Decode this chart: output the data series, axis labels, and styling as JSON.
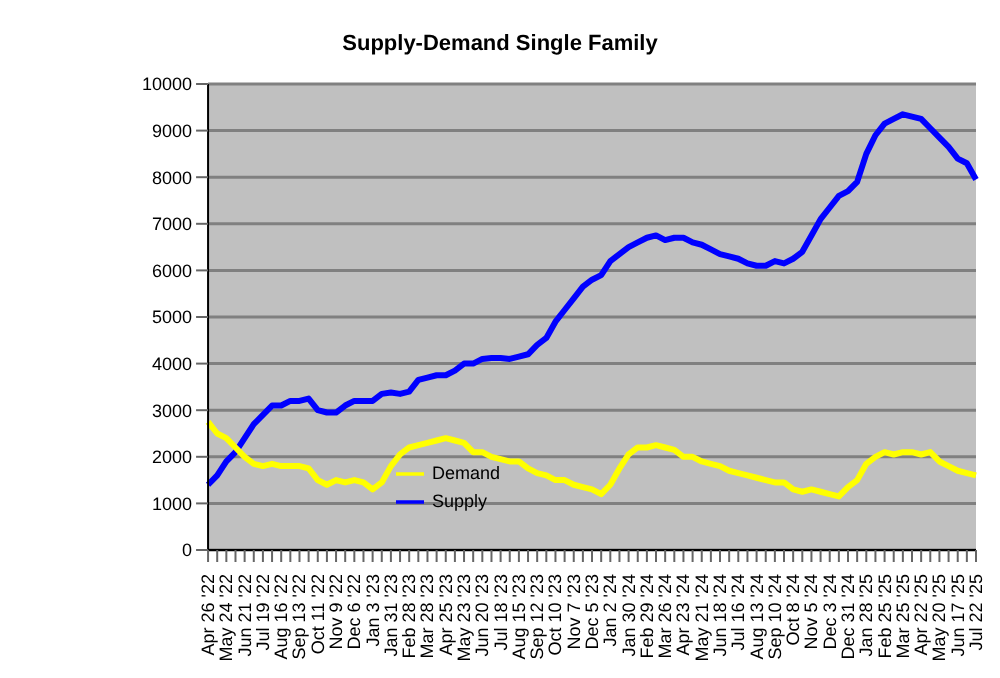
{
  "chart_data": {
    "type": "line",
    "title": "Supply-Demand Single Family",
    "categories": [
      "Apr 26 '22",
      null,
      "May 24 '22",
      null,
      "Jun 21 '22",
      null,
      "Jul 19 '22",
      null,
      "Aug 16 '22",
      null,
      "Sep 13 '22",
      null,
      "Oct 11 '22",
      null,
      "Nov 9 '22",
      null,
      "Dec 6 '22",
      null,
      "Jan 3 '23",
      null,
      "Jan 31 '23",
      null,
      "Feb 28 '23",
      null,
      "Mar 28 '23",
      null,
      "Apr 25 '23",
      null,
      "May 23 '23",
      null,
      "Jun 20 '23",
      null,
      "Jul 18 '23",
      null,
      "Aug 15 '23",
      null,
      "Sep 12 '23",
      null,
      "Oct 10 '23",
      null,
      "Nov 7 '23",
      null,
      "Dec 5 '23",
      null,
      "Jan 2 '24",
      null,
      "Jan 30 '24",
      null,
      "Feb 29 '24",
      null,
      "Mar 26 '24",
      null,
      "Apr 23 '24",
      null,
      "May 21 '24",
      null,
      "Jun 18 '24",
      null,
      "Jul 16 '24",
      null,
      "Aug 13 '24",
      null,
      "Sep 10 '24",
      null,
      "Oct 8 '24",
      null,
      "Nov 5 '24",
      null,
      "Dec 3 '24",
      null,
      "Dec 31 '24",
      null,
      "Jan 28 '25",
      null,
      "Feb 25 '25",
      null,
      "Mar 25 '25",
      null,
      "Apr 22 '25",
      null,
      "May 20 '25",
      null,
      "Jun 17 '25",
      null,
      "Jul 22 '25"
    ],
    "series": [
      {
        "name": "Supply",
        "color": "#0000ff",
        "values": [
          1400,
          1600,
          1900,
          2100,
          2400,
          2700,
          2900,
          3100,
          3100,
          3200,
          3200,
          3250,
          3000,
          2950,
          2950,
          3100,
          3200,
          3200,
          3200,
          3350,
          3380,
          3350,
          3400,
          3650,
          3700,
          3750,
          3750,
          3850,
          4000,
          4000,
          4100,
          4120,
          4120,
          4100,
          4150,
          4200,
          4400,
          4550,
          4900,
          5150,
          5400,
          5650,
          5800,
          5900,
          6200,
          6350,
          6500,
          6600,
          6700,
          6750,
          6650,
          6700,
          6700,
          6600,
          6550,
          6450,
          6350,
          6300,
          6250,
          6150,
          6100,
          6100,
          6200,
          6150,
          6250,
          6400,
          6750,
          7100,
          7350,
          7600,
          7700,
          7900,
          8500,
          8900,
          9150,
          9250,
          9350,
          9300,
          9250,
          9050,
          8850,
          8650,
          8400,
          8300,
          7950
        ]
      },
      {
        "name": "Demand",
        "color": "#ffff00",
        "values": [
          2750,
          2500,
          2400,
          2200,
          2000,
          1850,
          1800,
          1850,
          1800,
          1800,
          1800,
          1750,
          1500,
          1400,
          1500,
          1450,
          1500,
          1450,
          1300,
          1450,
          1800,
          2050,
          2200,
          2250,
          2300,
          2350,
          2400,
          2350,
          2300,
          2100,
          2100,
          2000,
          1950,
          1900,
          1900,
          1750,
          1650,
          1600,
          1500,
          1500,
          1400,
          1350,
          1300,
          1200,
          1400,
          1750,
          2050,
          2200,
          2200,
          2250,
          2200,
          2150,
          2000,
          2000,
          1900,
          1850,
          1800,
          1700,
          1650,
          1600,
          1550,
          1500,
          1450,
          1450,
          1300,
          1250,
          1300,
          1250,
          1200,
          1150,
          1350,
          1500,
          1850,
          2000,
          2100,
          2050,
          2100,
          2100,
          2050,
          2100,
          1900,
          1800,
          1700,
          1650,
          1600
        ]
      }
    ],
    "ylim": [
      0,
      10000
    ],
    "yticks": [
      0,
      1000,
      2000,
      3000,
      4000,
      5000,
      6000,
      7000,
      8000,
      9000,
      10000
    ],
    "grid": "y",
    "legend": "bottom",
    "marker": "none",
    "line_style": "solid"
  }
}
